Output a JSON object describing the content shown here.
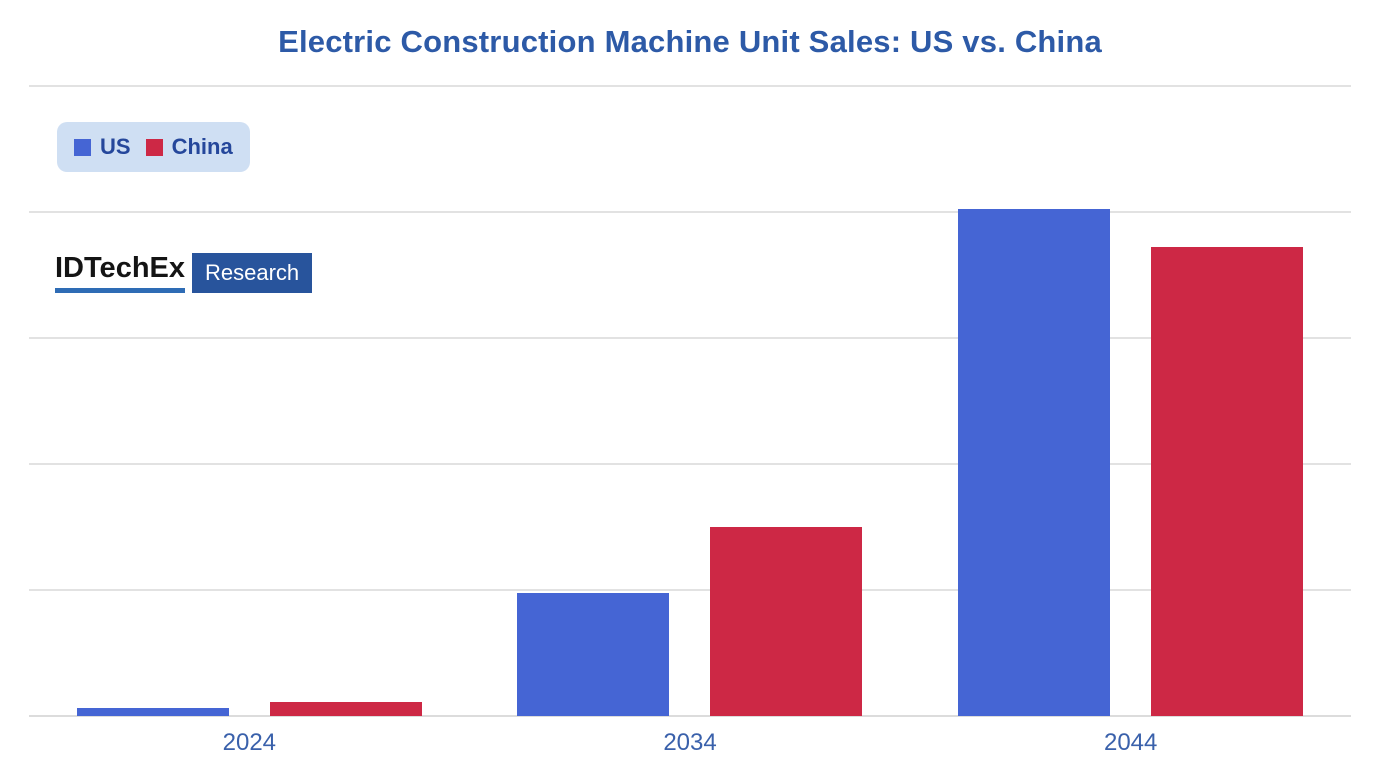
{
  "title": {
    "text": "Electric Construction Machine Unit Sales: US vs. China",
    "color": "#2d5aa7"
  },
  "legend": {
    "background": "#cfdff3",
    "text_color": "#25479b",
    "items": [
      {
        "label": "US",
        "color": "#4565d4"
      },
      {
        "label": "China",
        "color": "#cd2845"
      }
    ]
  },
  "logo": {
    "name": "IDTechEx",
    "badge": "Research",
    "underline_color": "#2e6cb5",
    "badge_bg": "#28549c",
    "badge_text_color": "#ffffff"
  },
  "chart_data": {
    "type": "bar",
    "title": "Electric Construction Machine Unit Sales: US vs. China",
    "categories": [
      "2024",
      "2034",
      "2044"
    ],
    "series": [
      {
        "name": "US",
        "color": "#4565d4",
        "values": [
          1.3,
          19.5,
          80.5
        ]
      },
      {
        "name": "China",
        "color": "#cd2845",
        "values": [
          2.2,
          30,
          74.5
        ]
      }
    ],
    "xlabel": "",
    "ylabel": "",
    "ylim": [
      0,
      100
    ],
    "yticks": [
      0,
      20,
      40,
      60,
      80,
      100
    ],
    "y_axis_labels_visible": false,
    "values_note": "Y axis has no visible labels; values estimated as percent of plot height where the top gridline = 100",
    "grid": "horizontal",
    "gridline_color": "#e2e2e2",
    "axis_label_color": "#3a61ab",
    "legend_position": "top-left"
  }
}
